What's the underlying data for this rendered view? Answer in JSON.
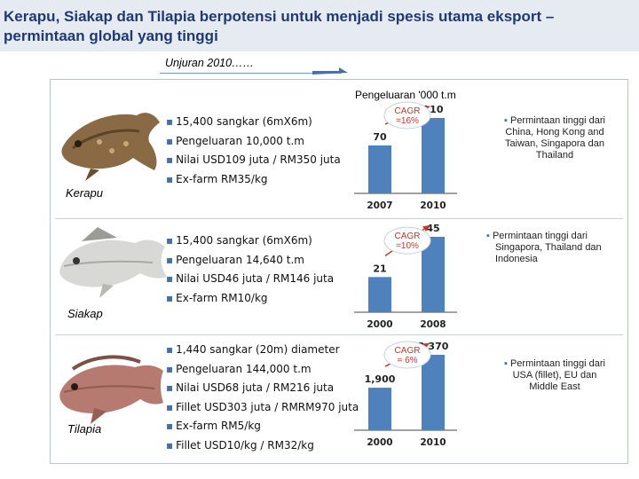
{
  "title": "Kerapu, Siakap dan Tilapia berpotensi untuk menjadi spesis utama eksport – permintaan global yang tinggi",
  "projection_label": "Unjuran 2010……",
  "chart_header": "Pengeluaran '000 t.m",
  "colors": {
    "title": "#1f3a73",
    "bar": "#4f81bd",
    "accent": "#4a6fa5"
  },
  "sections": [
    {
      "fish": "Kerapu",
      "bullets": [
        "15,400 sangkar (6mX6m)",
        "Pengeluaran 10,000 t.m",
        "Nilai USD109 juta / RM350 juta",
        "Ex-farm RM35/kg"
      ],
      "cagr": [
        "CAGR",
        "=16%"
      ],
      "note": [
        "Permintaan tinggi dari",
        "China, Hong Kong and",
        "Taiwan, Singapora dan",
        "Thailand"
      ]
    },
    {
      "fish": "Siakap",
      "bullets": [
        "15,400 sangkar (6mX6m)",
        "Pengeluaran 14,640 t.m",
        "Nilai USD46 juta / RM146 juta",
        "Ex-farm RM10/kg"
      ],
      "cagr": [
        "CAGR",
        "=10%"
      ],
      "note": [
        "Permintaan tinggi dari",
        "Singapora, Thailand dan",
        "Indonesia"
      ]
    },
    {
      "fish": "Tilapia",
      "bullets": [
        "1,440 sangkar (20m) diameter",
        "Pengeluaran 144,000 t.m",
        "Nilai USD68 juta / RM216 juta",
        "Fillet USD303 juta / RMRM970 juta",
        "Ex-farm RM5/kg",
        "Fillet USD10/kg / RM32/kg"
      ],
      "cagr": [
        "CAGR",
        "= 6%"
      ],
      "note": [
        "Permintaan tinggi dari",
        "USA (fillet), EU dan",
        "Middle East"
      ]
    }
  ],
  "chart_data": [
    {
      "type": "bar",
      "categories": [
        "2007",
        "2010"
      ],
      "values": [
        70,
        110
      ],
      "data_labels": [
        "70",
        "110"
      ]
    },
    {
      "type": "bar",
      "categories": [
        "2000",
        "2008"
      ],
      "values": [
        21,
        45
      ],
      "data_labels": [
        "21",
        "45"
      ]
    },
    {
      "type": "bar",
      "categories": [
        "2000",
        "2010"
      ],
      "values": [
        1900,
        3370
      ],
      "data_labels": [
        "1,900",
        "3,370"
      ]
    }
  ]
}
